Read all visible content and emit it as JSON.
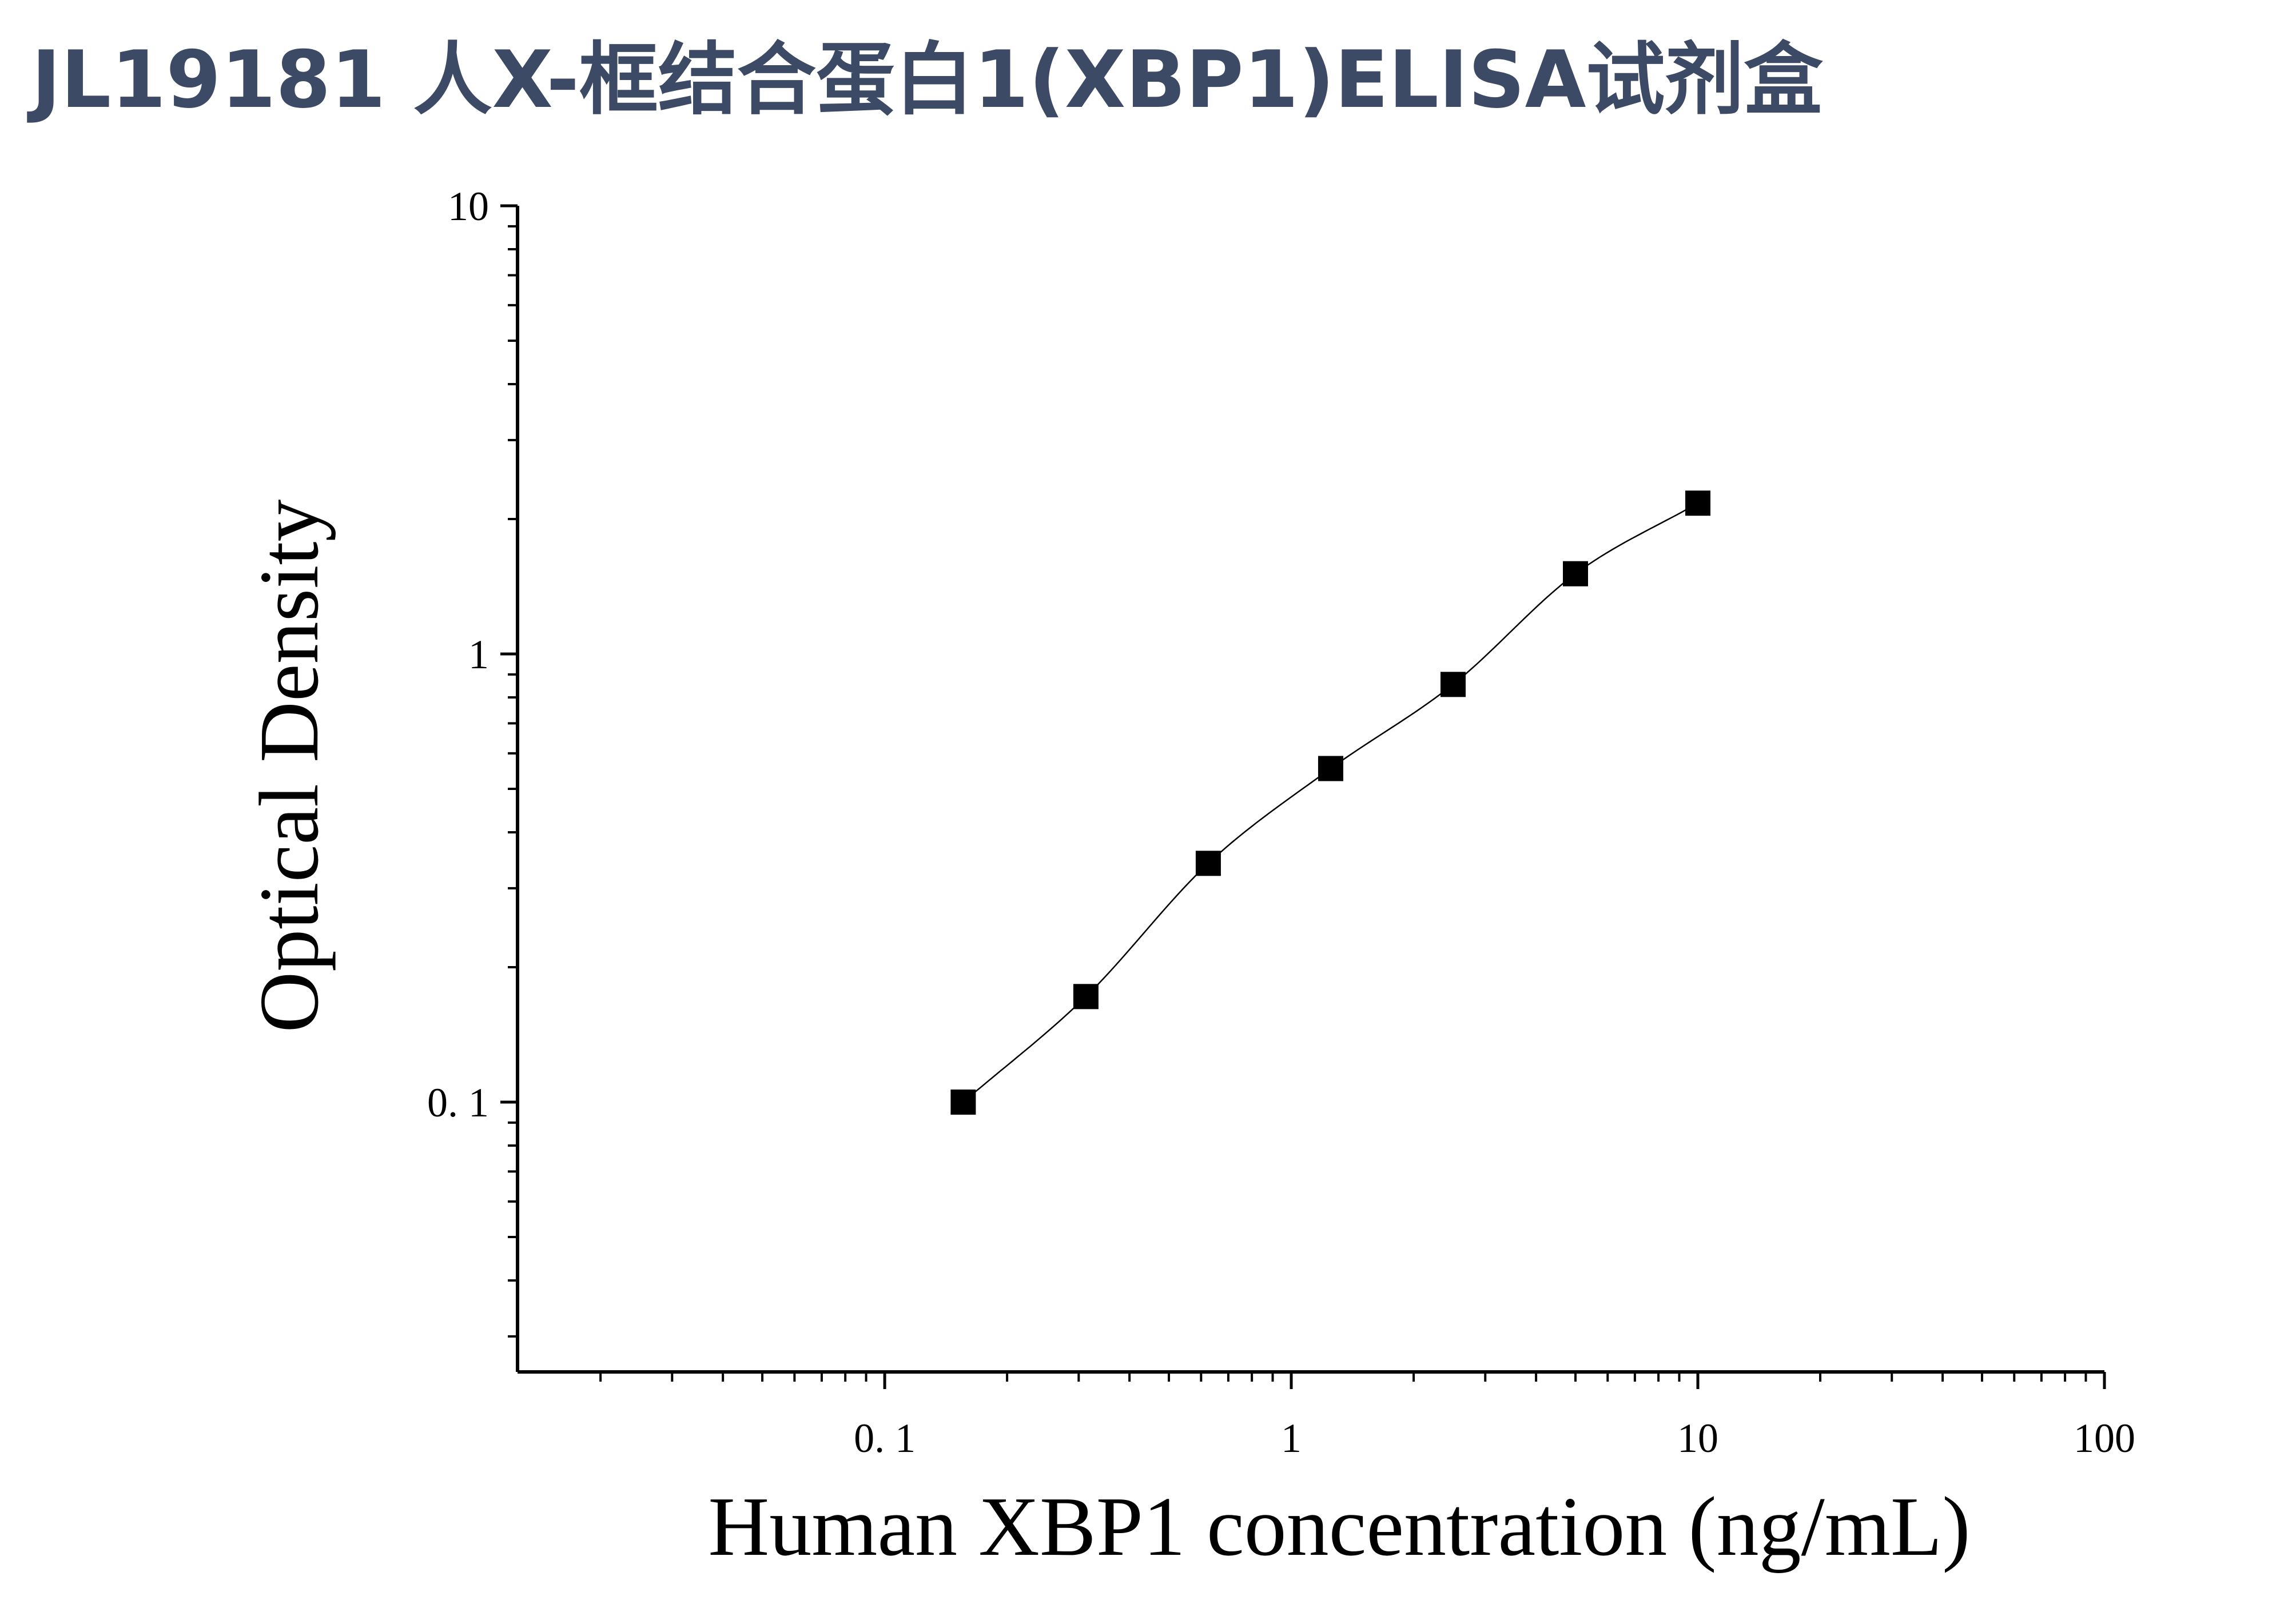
{
  "page": {
    "title": "JL19181 人X-框结合蛋白1(XBP1)ELISA试剂盒",
    "title_color": "#3d4a66"
  },
  "chart_data": {
    "type": "scatter",
    "title": "JL19181 人X-框结合蛋白1(XBP1)ELISA试剂盒",
    "xlabel": "Human XBP1 concentration (ng/mL)",
    "ylabel": "Optical Density",
    "x_scale": "log",
    "y_scale": "log",
    "xlim": [
      0.0125,
      100
    ],
    "ylim": [
      0.025,
      10
    ],
    "x_ticks": [
      {
        "value": 0.1,
        "label": "0. 1"
      },
      {
        "value": 1,
        "label": "1"
      },
      {
        "value": 10,
        "label": "10"
      },
      {
        "value": 100,
        "label": "100"
      }
    ],
    "y_ticks": [
      {
        "value": 0.1,
        "label": "0. 1"
      },
      {
        "value": 1,
        "label": "1"
      },
      {
        "value": 10,
        "label": "10"
      }
    ],
    "grid": false,
    "legend": "none",
    "marker": "square",
    "marker_color": "#000000",
    "fit_line": "smooth curve through points",
    "points": [
      {
        "x": 0.156,
        "y": 0.1
      },
      {
        "x": 0.3125,
        "y": 0.172
      },
      {
        "x": 0.625,
        "y": 0.341
      },
      {
        "x": 1.25,
        "y": 0.555
      },
      {
        "x": 2.5,
        "y": 0.855
      },
      {
        "x": 5,
        "y": 1.51
      },
      {
        "x": 10,
        "y": 2.17
      }
    ]
  }
}
